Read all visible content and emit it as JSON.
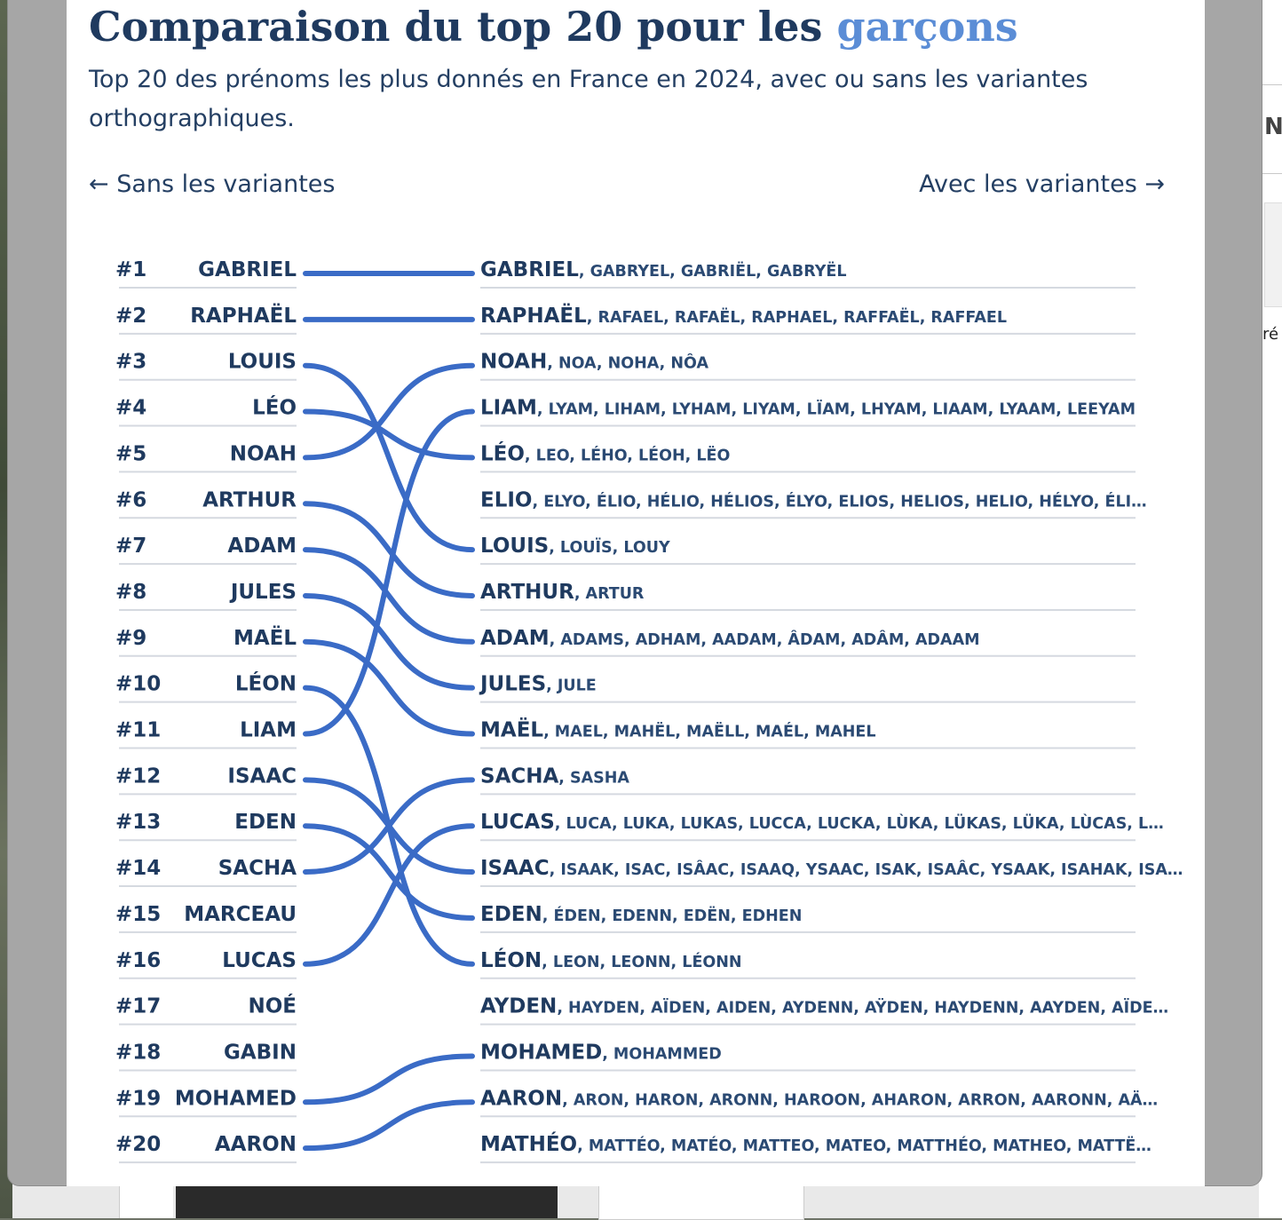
{
  "title": {
    "prefix": "Comparaison du top 20 pour les ",
    "highlight": "garçons"
  },
  "subtitle": "Top 20 des prénoms les plus donnés en France en 2024, avec ou sans les variantes orthographiques.",
  "nav": {
    "left": "← Sans les variantes",
    "right": "Avec les variantes →"
  },
  "colors": {
    "line": "#3a6bc6",
    "text": "#1f3a5f",
    "highlight": "#5b8dd6"
  },
  "chart_data": {
    "type": "slope",
    "ranks": [
      "#1",
      "#2",
      "#3",
      "#4",
      "#5",
      "#6",
      "#7",
      "#8",
      "#9",
      "#10",
      "#11",
      "#12",
      "#13",
      "#14",
      "#15",
      "#16",
      "#17",
      "#18",
      "#19",
      "#20"
    ],
    "left": [
      "GABRIEL",
      "RAPHAËL",
      "LOUIS",
      "LÉO",
      "NOAH",
      "ARTHUR",
      "ADAM",
      "JULES",
      "MAËL",
      "LÉON",
      "LIAM",
      "ISAAC",
      "EDEN",
      "SACHA",
      "MARCEAU",
      "LUCAS",
      "NOÉ",
      "GABIN",
      "MOHAMED",
      "AARON"
    ],
    "right": [
      {
        "name": "GABRIEL",
        "variants": ", GABRYEL, GABRIËL, GABRYËL"
      },
      {
        "name": "RAPHAËL",
        "variants": ", RAFAEL, RAFAËL, RAPHAEL, RAFFAËL, RAFFAEL"
      },
      {
        "name": "NOAH",
        "variants": ", NOA, NOHA, NÔA"
      },
      {
        "name": "LIAM",
        "variants": ", LYAM, LIHAM, LYHAM, LIYAM, LÏAM, LHYAM, LIAAM, LYAAM, LEEYAM"
      },
      {
        "name": "LÉO",
        "variants": ", LEO, LÉHO, LÉOH, LËO"
      },
      {
        "name": "ELIO",
        "variants": ", ELYO, ÉLIO, HÉLIO, HÉLIOS, ÉLYO, ELIOS, HELIOS, HELIO, HÉLYO, ÉLI…"
      },
      {
        "name": "LOUIS",
        "variants": ", LOUÏS, LOUY"
      },
      {
        "name": "ARTHUR",
        "variants": ", ARTUR"
      },
      {
        "name": "ADAM",
        "variants": ", ADAMS, ADHAM, AADAM, ÂDAM, ADÂM, ADAAM"
      },
      {
        "name": "JULES",
        "variants": ", JULE"
      },
      {
        "name": "MAËL",
        "variants": ", MAEL, MAHËL, MAËLL, MAÉL, MAHEL"
      },
      {
        "name": "SACHA",
        "variants": ", SASHA"
      },
      {
        "name": "LUCAS",
        "variants": ", LUCA, LUKA, LUKAS, LUCCA, LUCKA, LÙKA, LÜKAS, LÜKA, LÙCAS, L…"
      },
      {
        "name": "ISAAC",
        "variants": ", ISAAK, ISAC, ISÂAC, ISAAQ, YSAAC, ISAK, ISAÂC, YSAAK, ISAHAK, ISA…"
      },
      {
        "name": "EDEN",
        "variants": ", ÉDEN, EDENN, EDËN, EDHEN"
      },
      {
        "name": "LÉON",
        "variants": ", LEON, LEONN, LÉONN"
      },
      {
        "name": "AYDEN",
        "variants": ", HAYDEN, AÏDEN, AIDEN, AYDENN, AŸDEN, HAYDENN, AAYDEN, AÏDE…"
      },
      {
        "name": "MOHAMED",
        "variants": ", MOHAMMED"
      },
      {
        "name": "AARON",
        "variants": ", ARON, HARON, ARONN, HAROON, AHARON, ARRON, AARONN, AÄ…"
      },
      {
        "name": "MATHÉO",
        "variants": ", MATTÉO, MATÉO, MATTEO, MATEO, MATTHÉO, MATHEO, MATTË…"
      }
    ],
    "links": [
      [
        1,
        1
      ],
      [
        2,
        2
      ],
      [
        3,
        7
      ],
      [
        4,
        5
      ],
      [
        5,
        3
      ],
      [
        6,
        8
      ],
      [
        7,
        9
      ],
      [
        8,
        10
      ],
      [
        9,
        11
      ],
      [
        10,
        16
      ],
      [
        11,
        4
      ],
      [
        12,
        14
      ],
      [
        13,
        15
      ],
      [
        14,
        12
      ],
      [
        16,
        13
      ],
      [
        19,
        18
      ],
      [
        20,
        19
      ]
    ]
  }
}
